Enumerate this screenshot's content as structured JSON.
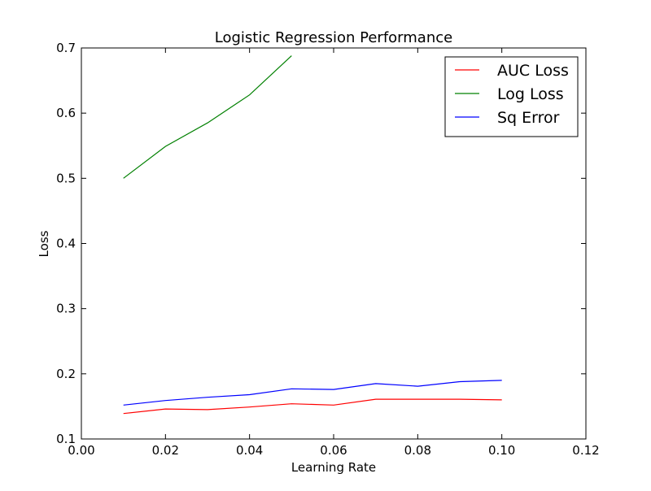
{
  "chart_data": {
    "type": "line",
    "title": "Logistic Regression Performance",
    "xlabel": "Learning Rate",
    "ylabel": "Loss",
    "xlim": [
      0.0,
      0.12
    ],
    "ylim": [
      0.1,
      0.7
    ],
    "xticks": [
      0.0,
      0.02,
      0.04,
      0.06,
      0.08,
      0.1,
      0.12
    ],
    "xtick_labels": [
      "0.00",
      "0.02",
      "0.04",
      "0.06",
      "0.08",
      "0.10",
      "0.12"
    ],
    "yticks": [
      0.1,
      0.2,
      0.3,
      0.4,
      0.5,
      0.6,
      0.7
    ],
    "ytick_labels": [
      "0.1",
      "0.2",
      "0.3",
      "0.4",
      "0.5",
      "0.6",
      "0.7"
    ],
    "grid": false,
    "legend_position": "top-right",
    "series": [
      {
        "name": "AUC Loss",
        "color": "#ff0000",
        "x": [
          0.01,
          0.02,
          0.03,
          0.04,
          0.05,
          0.06,
          0.07,
          0.08,
          0.09,
          0.1
        ],
        "y": [
          0.139,
          0.146,
          0.145,
          0.149,
          0.154,
          0.152,
          0.161,
          0.161,
          0.161,
          0.16
        ]
      },
      {
        "name": "Log Loss",
        "color": "#008000",
        "x": [
          0.01,
          0.02,
          0.03,
          0.04,
          0.05
        ],
        "y": [
          0.5,
          0.549,
          0.585,
          0.628,
          0.688
        ]
      },
      {
        "name": "Sq Error",
        "color": "#0000ff",
        "x": [
          0.01,
          0.02,
          0.03,
          0.04,
          0.05,
          0.06,
          0.07,
          0.08,
          0.09,
          0.1
        ],
        "y": [
          0.152,
          0.159,
          0.164,
          0.168,
          0.177,
          0.176,
          0.185,
          0.181,
          0.188,
          0.19
        ]
      }
    ]
  }
}
